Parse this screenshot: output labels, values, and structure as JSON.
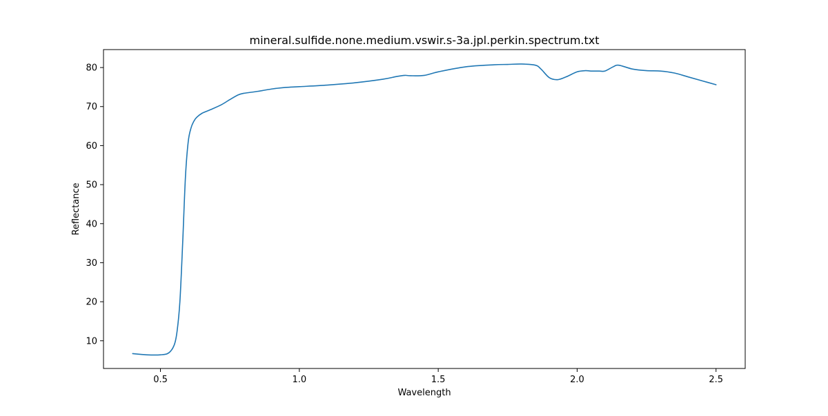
{
  "chart_data": {
    "type": "line",
    "title": "mineral.sulfide.none.medium.vswir.s-3a.jpl.perkin.spectrum.txt",
    "xlabel": "Wavelength",
    "ylabel": "Reflectance",
    "xlim": [
      0.295,
      2.605
    ],
    "ylim": [
      2.9,
      84.6
    ],
    "xticks": [
      0.5,
      1.0,
      1.5,
      2.0,
      2.5
    ],
    "xtick_labels": [
      "0.5",
      "1.0",
      "1.5",
      "2.0",
      "2.5"
    ],
    "yticks": [
      10,
      20,
      30,
      40,
      50,
      60,
      70,
      80
    ],
    "ytick_labels": [
      "10",
      "20",
      "30",
      "40",
      "50",
      "60",
      "70",
      "80"
    ],
    "grid": false,
    "legend": "none",
    "series": [
      {
        "color": "#1f77b4",
        "x": [
          0.4,
          0.45,
          0.5,
          0.53,
          0.55,
          0.56,
          0.57,
          0.58,
          0.59,
          0.6,
          0.61,
          0.62,
          0.63,
          0.65,
          0.68,
          0.72,
          0.75,
          0.78,
          0.8,
          0.85,
          0.9,
          0.95,
          1.0,
          1.1,
          1.2,
          1.3,
          1.35,
          1.38,
          1.4,
          1.45,
          1.5,
          1.6,
          1.7,
          1.75,
          1.8,
          1.85,
          1.87,
          1.9,
          1.93,
          1.96,
          2.0,
          2.03,
          2.05,
          2.08,
          2.1,
          2.13,
          2.15,
          2.2,
          2.25,
          2.3,
          2.35,
          2.4,
          2.45,
          2.5
        ],
        "y": [
          6.7,
          6.4,
          6.4,
          6.9,
          9.0,
          12.5,
          20.0,
          35.0,
          52.0,
          61.0,
          64.5,
          66.2,
          67.2,
          68.3,
          69.2,
          70.5,
          71.8,
          73.0,
          73.4,
          73.9,
          74.5,
          74.9,
          75.1,
          75.5,
          76.1,
          77.0,
          77.7,
          78.0,
          77.9,
          78.0,
          78.9,
          80.2,
          80.7,
          80.8,
          80.9,
          80.6,
          79.6,
          77.4,
          76.9,
          77.6,
          78.9,
          79.2,
          79.1,
          79.1,
          79.1,
          80.2,
          80.6,
          79.6,
          79.2,
          79.1,
          78.6,
          77.6,
          76.6,
          75.6
        ]
      }
    ]
  }
}
